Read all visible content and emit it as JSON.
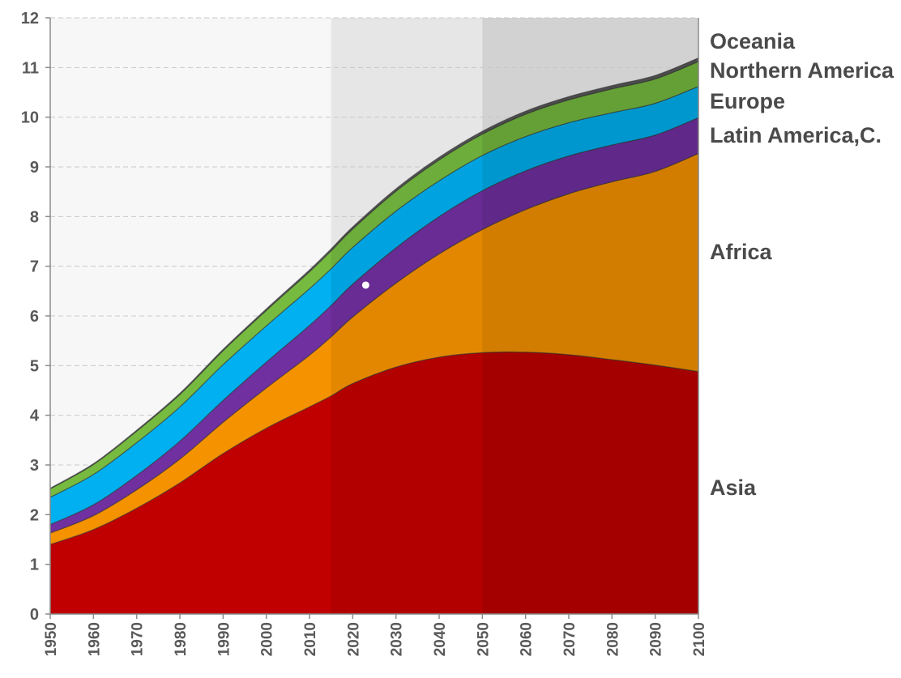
{
  "chart_data": {
    "type": "area",
    "stacked": true,
    "x": [
      1950,
      1960,
      1970,
      1980,
      1990,
      2000,
      2010,
      2015,
      2020,
      2030,
      2040,
      2050,
      2060,
      2070,
      2080,
      2090,
      2100
    ],
    "series": [
      {
        "name": "Asia",
        "color": "#c00000",
        "values": [
          1.4,
          1.7,
          2.13,
          2.64,
          3.23,
          3.74,
          4.17,
          4.39,
          4.64,
          4.97,
          5.17,
          5.26,
          5.27,
          5.22,
          5.12,
          5.01,
          4.88
        ]
      },
      {
        "name": "Africa",
        "color": "#f59200",
        "values": [
          0.23,
          0.28,
          0.37,
          0.48,
          0.63,
          0.81,
          1.04,
          1.19,
          1.34,
          1.69,
          2.08,
          2.48,
          2.87,
          3.24,
          3.58,
          3.9,
          4.39
        ]
      },
      {
        "name": "Latin America,C.",
        "color": "#7030a0",
        "values": [
          0.17,
          0.22,
          0.29,
          0.36,
          0.44,
          0.52,
          0.6,
          0.63,
          0.66,
          0.71,
          0.75,
          0.78,
          0.78,
          0.76,
          0.74,
          0.73,
          0.72
        ]
      },
      {
        "name": "Europe",
        "color": "#00b0f0",
        "values": [
          0.55,
          0.61,
          0.66,
          0.69,
          0.72,
          0.73,
          0.74,
          0.74,
          0.74,
          0.74,
          0.72,
          0.71,
          0.69,
          0.67,
          0.65,
          0.64,
          0.63
        ]
      },
      {
        "name": "Northern America",
        "color": "#76bb40",
        "values": [
          0.17,
          0.2,
          0.23,
          0.25,
          0.28,
          0.31,
          0.34,
          0.36,
          0.37,
          0.4,
          0.42,
          0.43,
          0.45,
          0.46,
          0.48,
          0.49,
          0.5
        ]
      },
      {
        "name": "Oceania",
        "color": "#595959",
        "values": [
          0.013,
          0.016,
          0.02,
          0.023,
          0.027,
          0.031,
          0.037,
          0.04,
          0.043,
          0.048,
          0.053,
          0.057,
          0.061,
          0.064,
          0.067,
          0.07,
          0.072
        ]
      }
    ],
    "xticks": [
      "1950",
      "1960",
      "1970",
      "1980",
      "1990",
      "2000",
      "2010",
      "2020",
      "2030",
      "2040",
      "2050",
      "2060",
      "2070",
      "2080",
      "2090",
      "2100"
    ],
    "yticks": [
      "0",
      "1",
      "2",
      "3",
      "4",
      "5",
      "6",
      "7",
      "8",
      "9",
      "10",
      "11",
      "12"
    ],
    "xlim": [
      1950,
      2100
    ],
    "ylim": [
      0,
      12
    ],
    "shaded_periods": [
      {
        "from": 2015,
        "to": 2050,
        "color": "#e6e6e6"
      },
      {
        "from": 2050,
        "to": 2100,
        "color": "#d2d2d2"
      }
    ],
    "marker_point": {
      "x": 2023,
      "y": 6.62,
      "color": "#ffffff"
    },
    "grid": "horizontal dashed",
    "legend": "right, labels beside areas",
    "title": "",
    "xlabel": "",
    "ylabel": ""
  }
}
